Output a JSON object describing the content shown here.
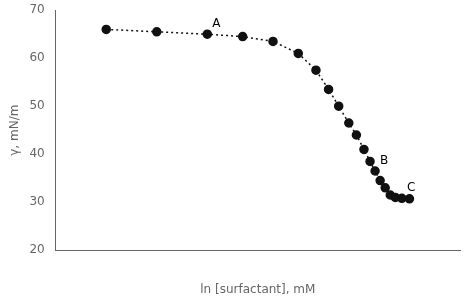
{
  "chart_data": {
    "type": "line",
    "xlabel": "ln [surfactant], mM",
    "ylabel": "γ, mN/m",
    "x": [
      0.5,
      1.5,
      2.5,
      3.2,
      3.8,
      4.3,
      4.65,
      4.9,
      5.1,
      5.3,
      5.45,
      5.6,
      5.72,
      5.82,
      5.92,
      6.02,
      6.12,
      6.22,
      6.35,
      6.5
    ],
    "values": [
      66.0,
      65.5,
      65.0,
      64.5,
      63.5,
      61.0,
      57.5,
      53.5,
      50.0,
      46.5,
      44.0,
      41.0,
      38.5,
      36.5,
      34.5,
      33.0,
      31.5,
      31.0,
      30.8,
      30.7
    ],
    "color": "#111111",
    "line_style": "dotted",
    "marker": "circle",
    "xlim": [
      -0.5,
      7.5
    ],
    "xticks": [
      1,
      2,
      3,
      4,
      5,
      6,
      7
    ],
    "ylim": [
      20,
      70
    ],
    "yticks": [
      20,
      30,
      40,
      50,
      60,
      70
    ],
    "tick_labels": "y",
    "grid": false,
    "annotations": [
      {
        "text": "A",
        "x": 2.5,
        "y": 65.0
      },
      {
        "text": "B",
        "x": 5.82,
        "y": 36.5
      },
      {
        "text": "C",
        "x": 6.35,
        "y": 30.8
      }
    ]
  }
}
